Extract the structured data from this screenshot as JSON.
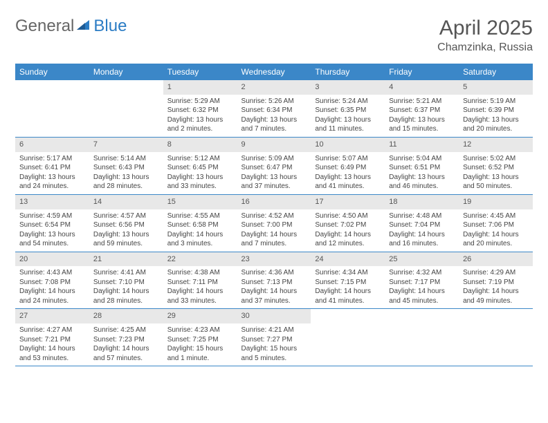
{
  "logo": {
    "part1": "General",
    "part2": "Blue"
  },
  "title": "April 2025",
  "location": "Chamzinka, Russia",
  "colors": {
    "header_bg": "#3b87c8",
    "header_text": "#ffffff",
    "daynum_bg": "#e8e8e8",
    "cell_text": "#444444",
    "rule": "#3b87c8",
    "logo_gray": "#666666",
    "logo_blue": "#2b7cc4"
  },
  "typography": {
    "title_fontsize": 30,
    "location_fontsize": 16,
    "header_fontsize": 12,
    "daynum_fontsize": 11,
    "cell_fontsize": 10
  },
  "layout": {
    "columns": 7,
    "rows": 5
  },
  "weekdays": [
    "Sunday",
    "Monday",
    "Tuesday",
    "Wednesday",
    "Thursday",
    "Friday",
    "Saturday"
  ],
  "labels": {
    "sunrise": "Sunrise:",
    "sunset": "Sunset:",
    "daylight": "Daylight:"
  },
  "weeks": [
    [
      null,
      null,
      {
        "n": "1",
        "sr": "5:29 AM",
        "ss": "6:32 PM",
        "dl": "13 hours and 2 minutes."
      },
      {
        "n": "2",
        "sr": "5:26 AM",
        "ss": "6:34 PM",
        "dl": "13 hours and 7 minutes."
      },
      {
        "n": "3",
        "sr": "5:24 AM",
        "ss": "6:35 PM",
        "dl": "13 hours and 11 minutes."
      },
      {
        "n": "4",
        "sr": "5:21 AM",
        "ss": "6:37 PM",
        "dl": "13 hours and 15 minutes."
      },
      {
        "n": "5",
        "sr": "5:19 AM",
        "ss": "6:39 PM",
        "dl": "13 hours and 20 minutes."
      }
    ],
    [
      {
        "n": "6",
        "sr": "5:17 AM",
        "ss": "6:41 PM",
        "dl": "13 hours and 24 minutes."
      },
      {
        "n": "7",
        "sr": "5:14 AM",
        "ss": "6:43 PM",
        "dl": "13 hours and 28 minutes."
      },
      {
        "n": "8",
        "sr": "5:12 AM",
        "ss": "6:45 PM",
        "dl": "13 hours and 33 minutes."
      },
      {
        "n": "9",
        "sr": "5:09 AM",
        "ss": "6:47 PM",
        "dl": "13 hours and 37 minutes."
      },
      {
        "n": "10",
        "sr": "5:07 AM",
        "ss": "6:49 PM",
        "dl": "13 hours and 41 minutes."
      },
      {
        "n": "11",
        "sr": "5:04 AM",
        "ss": "6:51 PM",
        "dl": "13 hours and 46 minutes."
      },
      {
        "n": "12",
        "sr": "5:02 AM",
        "ss": "6:52 PM",
        "dl": "13 hours and 50 minutes."
      }
    ],
    [
      {
        "n": "13",
        "sr": "4:59 AM",
        "ss": "6:54 PM",
        "dl": "13 hours and 54 minutes."
      },
      {
        "n": "14",
        "sr": "4:57 AM",
        "ss": "6:56 PM",
        "dl": "13 hours and 59 minutes."
      },
      {
        "n": "15",
        "sr": "4:55 AM",
        "ss": "6:58 PM",
        "dl": "14 hours and 3 minutes."
      },
      {
        "n": "16",
        "sr": "4:52 AM",
        "ss": "7:00 PM",
        "dl": "14 hours and 7 minutes."
      },
      {
        "n": "17",
        "sr": "4:50 AM",
        "ss": "7:02 PM",
        "dl": "14 hours and 12 minutes."
      },
      {
        "n": "18",
        "sr": "4:48 AM",
        "ss": "7:04 PM",
        "dl": "14 hours and 16 minutes."
      },
      {
        "n": "19",
        "sr": "4:45 AM",
        "ss": "7:06 PM",
        "dl": "14 hours and 20 minutes."
      }
    ],
    [
      {
        "n": "20",
        "sr": "4:43 AM",
        "ss": "7:08 PM",
        "dl": "14 hours and 24 minutes."
      },
      {
        "n": "21",
        "sr": "4:41 AM",
        "ss": "7:10 PM",
        "dl": "14 hours and 28 minutes."
      },
      {
        "n": "22",
        "sr": "4:38 AM",
        "ss": "7:11 PM",
        "dl": "14 hours and 33 minutes."
      },
      {
        "n": "23",
        "sr": "4:36 AM",
        "ss": "7:13 PM",
        "dl": "14 hours and 37 minutes."
      },
      {
        "n": "24",
        "sr": "4:34 AM",
        "ss": "7:15 PM",
        "dl": "14 hours and 41 minutes."
      },
      {
        "n": "25",
        "sr": "4:32 AM",
        "ss": "7:17 PM",
        "dl": "14 hours and 45 minutes."
      },
      {
        "n": "26",
        "sr": "4:29 AM",
        "ss": "7:19 PM",
        "dl": "14 hours and 49 minutes."
      }
    ],
    [
      {
        "n": "27",
        "sr": "4:27 AM",
        "ss": "7:21 PM",
        "dl": "14 hours and 53 minutes."
      },
      {
        "n": "28",
        "sr": "4:25 AM",
        "ss": "7:23 PM",
        "dl": "14 hours and 57 minutes."
      },
      {
        "n": "29",
        "sr": "4:23 AM",
        "ss": "7:25 PM",
        "dl": "15 hours and 1 minute."
      },
      {
        "n": "30",
        "sr": "4:21 AM",
        "ss": "7:27 PM",
        "dl": "15 hours and 5 minutes."
      },
      null,
      null,
      null
    ]
  ]
}
